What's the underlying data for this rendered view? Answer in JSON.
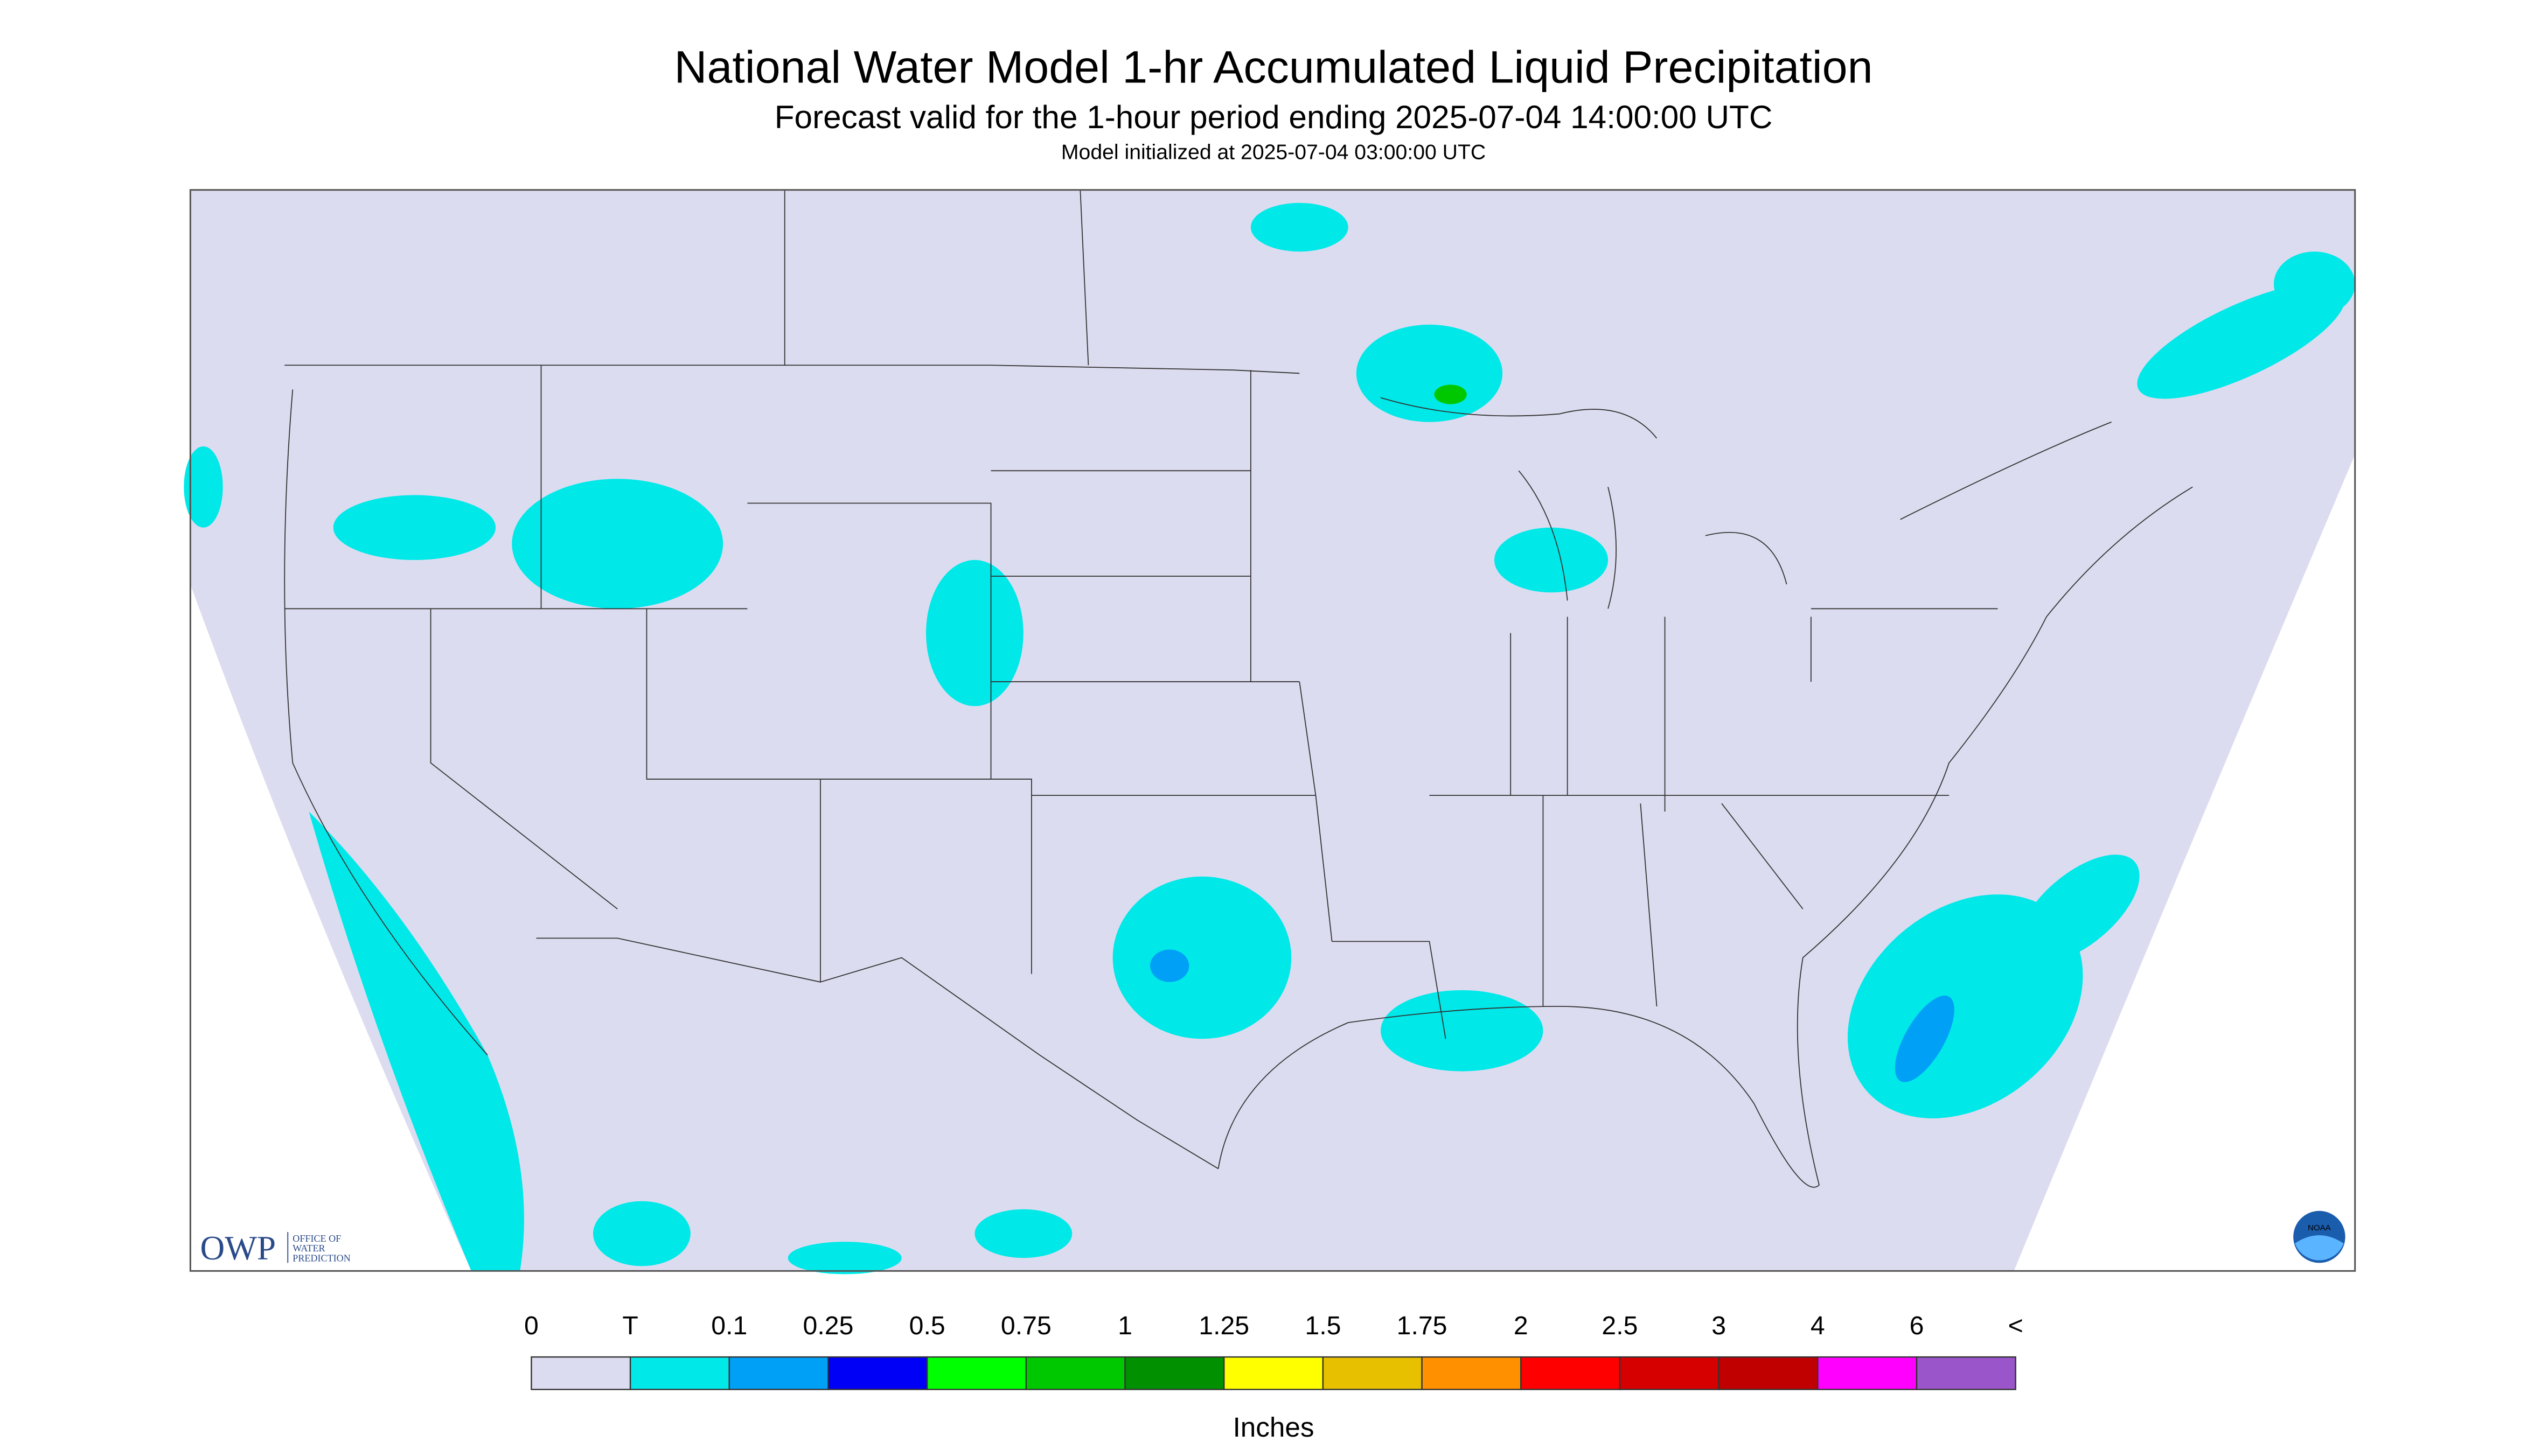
{
  "header": {
    "title": "National Water Model 1-hr Accumulated Liquid Precipitation",
    "subtitle": "Forecast valid for the 1-hour period ending 2025-07-04 14:00:00 UTC",
    "init": "Model initialized at 2025-07-04 03:00:00 UTC"
  },
  "logo": {
    "name": "OWP",
    "line1": "OFFICE OF",
    "line2": "WATER",
    "line3": "PREDICTION",
    "noaa": "NOAA"
  },
  "legend": {
    "labels": [
      "0",
      "T",
      "0.1",
      "0.25",
      "0.5",
      "0.75",
      "1",
      "1.25",
      "1.5",
      "1.75",
      "2",
      "2.5",
      "3",
      "4",
      "6",
      "<"
    ],
    "colors": [
      "#dcdcf0",
      "#00e8e8",
      "#00a0f6",
      "#0000f6",
      "#00ff00",
      "#00c800",
      "#009000",
      "#ffff00",
      "#e7c000",
      "#ff9000",
      "#ff0000",
      "#d60000",
      "#c00000",
      "#ff00ff",
      "#9955c9"
    ],
    "unit": "Inches"
  }
}
